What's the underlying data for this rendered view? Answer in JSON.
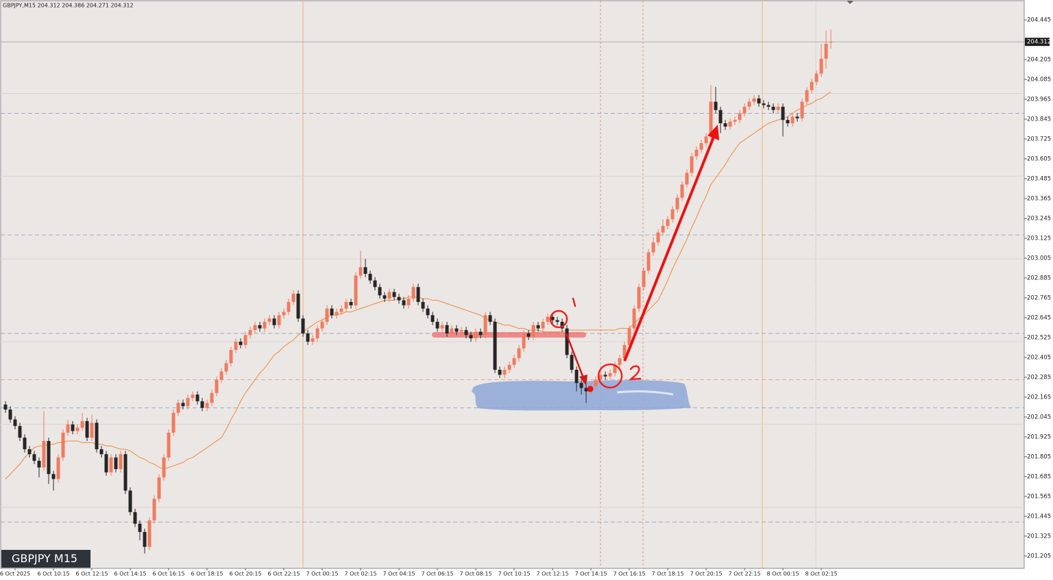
{
  "chart_data": {
    "type": "candlestick",
    "header": "GBPJPY,M15  204.312 204.386 204.271 204.312",
    "symbol_label": "GBPJPY M15",
    "up_color": "#f07b5f",
    "down_color": "#262626",
    "ylim": [
      201.13,
      204.565
    ],
    "yticks": [
      204.445,
      204.205,
      204.085,
      203.965,
      203.845,
      203.725,
      203.605,
      203.485,
      203.365,
      203.245,
      203.125,
      203.005,
      202.885,
      202.765,
      202.645,
      202.525,
      202.405,
      202.285,
      202.165,
      202.045,
      201.925,
      201.805,
      201.685,
      201.565,
      201.445,
      201.325,
      201.205
    ],
    "grid_lines": [
      204.0,
      203.5,
      203.0,
      202.5,
      202.0,
      201.5
    ],
    "hlines": [
      {
        "value": 203.88,
        "color": "#9aaac4"
      },
      {
        "value": 203.145,
        "color": "#9aaac4"
      },
      {
        "value": 202.55,
        "color": "#9aaac4"
      },
      {
        "value": 202.1,
        "color": "#9aaac4"
      },
      {
        "value": 201.41,
        "color": "#9aaac4"
      },
      {
        "value": 202.27,
        "color": "#e8a0a0"
      }
    ],
    "categories": [
      null,
      null,
      "6 Oct 2025",
      null,
      null,
      null,
      null,
      null,
      null,
      null,
      "6 Oct 10:15",
      null,
      null,
      null,
      null,
      null,
      null,
      null,
      "6 Oct 12:15",
      null,
      null,
      null,
      null,
      null,
      null,
      null,
      "6 Oct 14:15",
      null,
      null,
      null,
      null,
      null,
      null,
      null,
      "6 Oct 16:15",
      null,
      null,
      null,
      null,
      null,
      null,
      null,
      "6 Oct 18:15",
      null,
      null,
      null,
      null,
      null,
      null,
      null,
      "6 Oct 20:15",
      null,
      null,
      null,
      null,
      null,
      null,
      null,
      "6 Oct 22:15",
      null,
      null,
      null,
      null,
      null,
      null,
      null,
      "7 Oct 00:15",
      null,
      null,
      null,
      null,
      null,
      null,
      null,
      "7 Oct 02:15",
      null,
      null,
      null,
      null,
      null,
      null,
      null,
      "7 Oct 04:15",
      null,
      null,
      null,
      null,
      null,
      null,
      null,
      "7 Oct 06:15",
      null,
      null,
      null,
      null,
      null,
      null,
      null,
      "7 Oct 08:15",
      null,
      null,
      null,
      null,
      null,
      null,
      null,
      "7 Oct 10:15",
      null,
      null,
      null,
      null,
      null,
      null,
      null,
      "7 Oct 12:15",
      null,
      null,
      null,
      null,
      null,
      null,
      null,
      "7 Oct 14:15",
      null,
      null,
      null,
      null,
      null,
      null,
      null,
      "7 Oct 16:15",
      null,
      null,
      null,
      null,
      null,
      null,
      null,
      "7 Oct 18:15",
      null,
      null,
      null,
      null,
      null,
      null,
      null,
      "7 Oct 20:15",
      null,
      null,
      null,
      null,
      null,
      null,
      null,
      "7 Oct 22:15",
      null,
      null,
      null,
      null,
      null,
      null,
      null,
      "8 Oct 00:15",
      null,
      null,
      null,
      null,
      null,
      null,
      null,
      "8 Oct 02:15",
      null,
      null
    ],
    "open": [
      202.12,
      202.09,
      202.03,
      201.99,
      201.92,
      201.85,
      201.82,
      201.78,
      201.74,
      201.9,
      201.7,
      201.67,
      201.8,
      201.95,
      202.0,
      201.96,
      201.98,
      202.02,
      201.92,
      202.01,
      201.85,
      201.82,
      201.71,
      201.8,
      201.73,
      201.82,
      201.6,
      201.47,
      201.4,
      201.35,
      201.26,
      201.42,
      201.55,
      201.68,
      201.8,
      201.95,
      202.07,
      202.13,
      202.11,
      202.16,
      202.18,
      202.14,
      202.1,
      202.13,
      202.19,
      202.27,
      202.32,
      202.37,
      202.45,
      202.5,
      202.48,
      202.54,
      202.57,
      202.6,
      202.58,
      202.62,
      202.64,
      202.6,
      202.66,
      202.68,
      202.74,
      202.79,
      202.64,
      202.55,
      202.5,
      202.52,
      202.58,
      202.62,
      202.7,
      202.66,
      202.68,
      202.7,
      202.74,
      202.72,
      202.9,
      202.95,
      202.91,
      202.87,
      202.83,
      202.78,
      202.76,
      202.8,
      202.77,
      202.75,
      202.72,
      202.76,
      202.83,
      202.74,
      202.7,
      202.66,
      202.62,
      202.58,
      202.6,
      202.55,
      202.58,
      202.56,
      202.57,
      202.54,
      202.52,
      202.56,
      202.54,
      202.66,
      202.62,
      202.33,
      202.3,
      202.33,
      202.36,
      202.4,
      202.46,
      202.55,
      202.53,
      202.6,
      202.58,
      202.62,
      202.65,
      202.63,
      202.62,
      202.58,
      202.42,
      202.33,
      202.25,
      202.22,
      202.2,
      202.23,
      202.27,
      202.3,
      202.29,
      202.31,
      202.36,
      202.4,
      202.48,
      202.58,
      202.7,
      202.83,
      202.93,
      203.04,
      203.1,
      203.16,
      203.2,
      203.24,
      203.3,
      203.37,
      203.45,
      203.52,
      203.62,
      203.66,
      203.7,
      203.74,
      203.95,
      203.9,
      203.82,
      203.8,
      203.83,
      203.84,
      203.88,
      203.92,
      203.95,
      203.97,
      203.94,
      203.93,
      203.92,
      203.9,
      203.92,
      203.84,
      203.82,
      203.86,
      203.85,
      203.95,
      204.02,
      204.07,
      204.12,
      204.21,
      204.312
    ],
    "high": [
      202.14,
      202.11,
      202.05,
      202.01,
      201.94,
      201.87,
      201.84,
      201.8,
      202.08,
      201.92,
      201.72,
      201.82,
      201.97,
      202.03,
      202.02,
      202.0,
      202.07,
      202.04,
      202.06,
      202.03,
      201.87,
      201.84,
      201.82,
      201.82,
      201.84,
      201.84,
      201.62,
      201.49,
      201.42,
      201.37,
      201.44,
      201.57,
      201.7,
      201.82,
      201.97,
      202.09,
      202.15,
      202.15,
      202.18,
      202.2,
      202.2,
      202.16,
      202.15,
      202.21,
      202.29,
      202.34,
      202.39,
      202.47,
      202.52,
      202.52,
      202.56,
      202.59,
      202.62,
      202.62,
      202.64,
      202.66,
      202.66,
      202.68,
      202.7,
      202.76,
      202.81,
      202.81,
      202.66,
      202.57,
      202.54,
      202.6,
      202.64,
      202.72,
      202.72,
      202.7,
      202.72,
      202.76,
      202.76,
      202.92,
      203.05,
      203.0,
      202.93,
      202.89,
      202.85,
      202.8,
      202.82,
      202.82,
      202.79,
      202.77,
      202.78,
      202.85,
      202.85,
      202.76,
      202.72,
      202.68,
      202.64,
      202.62,
      202.62,
      202.6,
      202.6,
      202.59,
      202.59,
      202.56,
      202.58,
      202.58,
      202.68,
      202.68,
      202.64,
      202.35,
      202.35,
      202.38,
      202.42,
      202.48,
      202.57,
      202.57,
      202.62,
      202.62,
      202.64,
      202.67,
      202.67,
      202.65,
      202.64,
      202.6,
      202.44,
      202.35,
      202.27,
      202.24,
      202.25,
      202.29,
      202.32,
      202.32,
      202.33,
      202.38,
      202.42,
      202.5,
      202.6,
      202.72,
      202.85,
      202.95,
      203.06,
      203.13,
      203.18,
      203.24,
      203.26,
      203.32,
      203.39,
      203.47,
      203.54,
      203.64,
      203.68,
      203.72,
      203.76,
      204.05,
      204.04,
      203.92,
      203.84,
      203.85,
      203.86,
      203.9,
      203.94,
      203.97,
      203.99,
      203.99,
      203.96,
      203.95,
      203.94,
      203.94,
      203.94,
      203.86,
      203.88,
      203.88,
      203.97,
      204.04,
      204.09,
      204.14,
      204.3,
      204.38,
      204.386
    ],
    "low": [
      202.07,
      202.01,
      201.97,
      201.9,
      201.83,
      201.8,
      201.76,
      201.68,
      201.72,
      201.64,
      201.6,
      201.65,
      201.78,
      201.93,
      201.94,
      201.94,
      201.96,
      201.9,
      201.9,
      201.83,
      201.8,
      201.69,
      201.69,
      201.71,
      201.71,
      201.58,
      201.45,
      201.38,
      201.3,
      201.22,
      201.24,
      201.4,
      201.53,
      201.66,
      201.78,
      201.93,
      202.05,
      202.09,
      202.09,
      202.14,
      202.12,
      202.08,
      202.08,
      202.11,
      202.17,
      202.25,
      202.3,
      202.35,
      202.43,
      202.46,
      202.46,
      202.52,
      202.55,
      202.56,
      202.56,
      202.6,
      202.58,
      202.58,
      202.64,
      202.66,
      202.72,
      202.62,
      202.53,
      202.48,
      202.48,
      202.5,
      202.56,
      202.6,
      202.64,
      202.64,
      202.66,
      202.68,
      202.7,
      202.7,
      202.88,
      202.89,
      202.85,
      202.81,
      202.76,
      202.74,
      202.74,
      202.75,
      202.73,
      202.7,
      202.7,
      202.74,
      202.72,
      202.68,
      202.64,
      202.6,
      202.56,
      202.56,
      202.53,
      202.53,
      202.54,
      202.54,
      202.52,
      202.5,
      202.5,
      202.52,
      202.52,
      202.6,
      202.31,
      202.28,
      202.28,
      202.31,
      202.34,
      202.38,
      202.44,
      202.51,
      202.51,
      202.56,
      202.56,
      202.6,
      202.61,
      202.6,
      202.56,
      202.4,
      202.31,
      202.2,
      202.18,
      202.13,
      202.18,
      202.21,
      202.25,
      202.27,
      202.27,
      202.29,
      202.34,
      202.38,
      202.46,
      202.56,
      202.68,
      202.81,
      202.91,
      203.02,
      203.08,
      203.14,
      203.18,
      203.22,
      203.28,
      203.35,
      203.43,
      203.5,
      203.6,
      203.64,
      203.68,
      203.72,
      203.88,
      203.76,
      203.78,
      203.78,
      203.81,
      203.82,
      203.86,
      203.9,
      203.93,
      203.92,
      203.91,
      203.9,
      203.88,
      203.88,
      203.74,
      203.8,
      203.8,
      203.83,
      203.83,
      203.93,
      204.0,
      204.05,
      204.1,
      204.15,
      204.271
    ],
    "close": [
      202.09,
      202.03,
      201.99,
      201.92,
      201.85,
      201.82,
      201.78,
      201.74,
      201.9,
      201.7,
      201.67,
      201.8,
      201.95,
      202.0,
      201.96,
      201.98,
      202.02,
      201.92,
      202.01,
      201.85,
      201.82,
      201.71,
      201.8,
      201.73,
      201.82,
      201.6,
      201.47,
      201.4,
      201.35,
      201.26,
      201.42,
      201.55,
      201.68,
      201.8,
      201.95,
      202.07,
      202.13,
      202.11,
      202.16,
      202.18,
      202.14,
      202.1,
      202.13,
      202.19,
      202.27,
      202.32,
      202.37,
      202.45,
      202.5,
      202.48,
      202.54,
      202.57,
      202.6,
      202.58,
      202.62,
      202.64,
      202.6,
      202.66,
      202.68,
      202.74,
      202.79,
      202.64,
      202.55,
      202.5,
      202.52,
      202.58,
      202.62,
      202.7,
      202.66,
      202.68,
      202.7,
      202.74,
      202.72,
      202.9,
      202.95,
      202.91,
      202.87,
      202.83,
      202.78,
      202.76,
      202.8,
      202.77,
      202.75,
      202.72,
      202.76,
      202.83,
      202.74,
      202.7,
      202.66,
      202.62,
      202.58,
      202.6,
      202.55,
      202.58,
      202.56,
      202.57,
      202.54,
      202.52,
      202.56,
      202.54,
      202.66,
      202.62,
      202.33,
      202.3,
      202.33,
      202.36,
      202.4,
      202.46,
      202.55,
      202.53,
      202.6,
      202.58,
      202.62,
      202.65,
      202.63,
      202.62,
      202.58,
      202.42,
      202.33,
      202.25,
      202.22,
      202.2,
      202.23,
      202.27,
      202.3,
      202.29,
      202.31,
      202.36,
      202.4,
      202.48,
      202.58,
      202.7,
      202.83,
      202.93,
      203.04,
      203.1,
      203.16,
      203.2,
      203.24,
      203.3,
      203.37,
      203.45,
      203.52,
      203.62,
      203.66,
      203.7,
      203.74,
      203.95,
      203.9,
      203.82,
      203.8,
      203.83,
      203.84,
      203.88,
      203.92,
      203.95,
      203.97,
      203.94,
      203.93,
      203.92,
      203.9,
      203.92,
      203.84,
      203.82,
      203.86,
      203.85,
      203.95,
      204.02,
      204.07,
      204.12,
      204.21,
      204.3,
      204.312
    ],
    "overlays": [
      {
        "color": "#f0883a",
        "values": [
          201.67,
          201.7,
          201.73,
          201.76,
          201.8,
          201.83,
          201.86,
          201.87,
          201.87,
          201.88,
          201.88,
          201.89,
          201.89,
          201.9,
          201.9,
          201.9,
          201.89,
          201.89,
          201.89,
          201.88,
          201.88,
          201.87,
          201.87,
          201.86,
          201.85,
          201.85,
          201.84,
          201.82,
          201.8,
          201.79,
          201.77,
          201.76,
          201.74,
          201.73,
          201.74,
          201.75,
          201.76,
          201.77,
          201.79,
          201.8,
          201.82,
          201.84,
          201.86,
          201.88,
          201.9,
          201.92,
          201.97,
          202.03,
          202.08,
          202.14,
          202.19,
          202.23,
          202.27,
          202.31,
          202.34,
          202.38,
          202.42,
          202.44,
          202.47,
          202.49,
          202.51,
          202.54,
          202.56,
          202.58,
          202.6,
          202.62,
          202.63,
          202.65,
          202.66,
          202.66,
          202.67,
          202.68,
          202.68,
          202.69,
          202.7,
          202.71,
          202.72,
          202.73,
          202.74,
          202.75,
          202.75,
          202.75,
          202.76,
          202.76,
          202.77,
          202.77,
          202.77,
          202.76,
          202.76,
          202.75,
          202.75,
          202.74,
          202.73,
          202.72,
          202.71,
          202.7,
          202.69,
          202.68,
          202.67,
          202.66,
          202.64,
          202.63,
          202.62,
          202.61,
          202.6,
          202.6,
          202.59,
          202.58,
          202.58,
          202.57,
          202.57,
          202.57,
          202.56,
          202.56,
          202.56,
          202.56,
          202.56,
          202.57,
          202.57,
          202.57,
          202.57,
          202.57,
          202.57,
          202.57,
          202.57,
          202.57,
          202.57,
          202.57,
          202.58,
          202.58,
          202.58,
          202.61,
          202.64,
          202.66,
          202.69,
          202.72,
          202.75,
          202.81,
          202.87,
          202.94,
          203.0,
          203.06,
          203.12,
          203.19,
          203.25,
          203.32,
          203.38,
          203.45,
          203.49,
          203.53,
          203.57,
          203.62,
          203.66,
          203.7,
          203.72,
          203.74,
          203.76,
          203.78,
          203.8,
          203.82,
          203.83,
          203.84,
          203.85,
          203.86,
          203.88,
          203.9,
          203.91,
          203.93,
          203.94,
          203.96,
          203.97,
          203.99,
          204.01
        ]
      }
    ]
  }
}
